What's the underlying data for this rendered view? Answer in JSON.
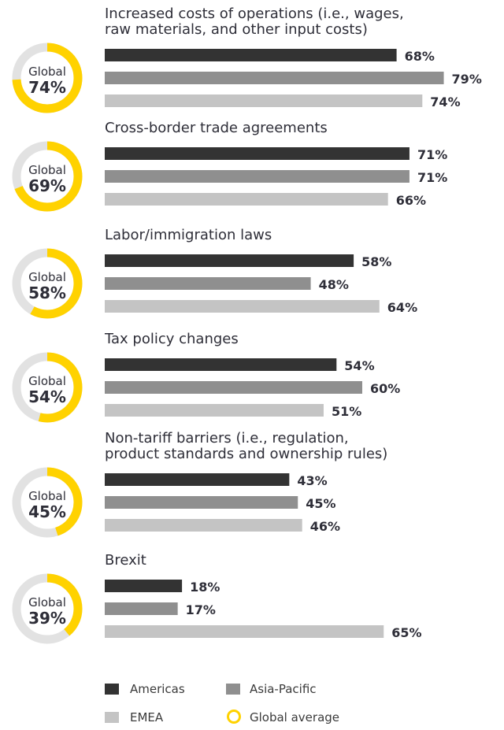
{
  "colors": {
    "americas": "#333333",
    "asia_pacific": "#8f8f8f",
    "emea": "#c4c4c4",
    "global_ring": "#ffd200",
    "ring_track": "#e2e2e2"
  },
  "global_caption": "Global",
  "chart_data": {
    "type": "bar",
    "orientation": "horizontal",
    "xlim": [
      0,
      100
    ],
    "series_names": [
      "Americas",
      "Asia-Pacific",
      "EMEA"
    ],
    "groups": [
      {
        "label_lines": [
          "Increased costs of operations (i.e., wages,",
          "raw materials, and other input costs)"
        ],
        "global": 74,
        "global_label": "74%",
        "values": [
          68,
          79,
          74
        ],
        "labels": [
          "68%",
          "79%",
          "74%"
        ]
      },
      {
        "label_lines": [
          "Cross-border trade agreements"
        ],
        "global": 69,
        "global_label": "69%",
        "values": [
          71,
          71,
          66
        ],
        "labels": [
          "71%",
          "71%",
          "66%"
        ]
      },
      {
        "label_lines": [
          "Labor/immigration laws"
        ],
        "global": 58,
        "global_label": "58%",
        "values": [
          58,
          48,
          64
        ],
        "labels": [
          "58%",
          "48%",
          "64%"
        ]
      },
      {
        "label_lines": [
          "Tax policy changes"
        ],
        "global": 54,
        "global_label": "54%",
        "values": [
          54,
          60,
          51
        ],
        "labels": [
          "54%",
          "60%",
          "51%"
        ]
      },
      {
        "label_lines": [
          "Non-tariff barriers (i.e., regulation,",
          "product standards and ownership rules)"
        ],
        "global": 45,
        "global_label": "45%",
        "values": [
          43,
          45,
          46
        ],
        "labels": [
          "43%",
          "45%",
          "46%"
        ]
      },
      {
        "label_lines": [
          "Brexit"
        ],
        "global": 39,
        "global_label": "39%",
        "values": [
          18,
          17,
          65
        ],
        "labels": [
          "18%",
          "17%",
          "65%"
        ]
      }
    ]
  },
  "legend": {
    "americas": "Americas",
    "asia_pacific": "Asia-Pacific",
    "emea": "EMEA",
    "global_average": "Global average"
  }
}
